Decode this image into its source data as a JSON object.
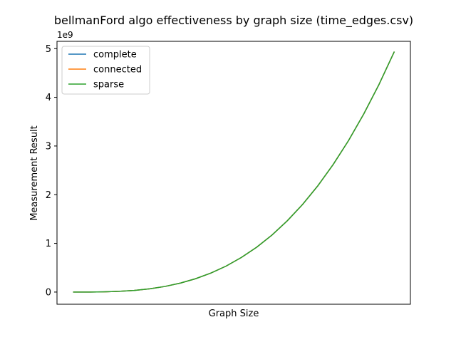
{
  "chart_data": {
    "type": "line",
    "title": "bellmanFord algo effectiveness by graph size (time_edges.csv)",
    "xlabel": "Graph Size",
    "ylabel": "Measurement Result",
    "y_offset_label": "1e9",
    "y_scale_factor": 1000000000,
    "yticks": [
      0,
      1,
      2,
      3,
      4,
      5
    ],
    "ylim": [
      -0.25,
      5.15
    ],
    "xlim": [
      -1.05,
      22.05
    ],
    "x_ticks_shown": false,
    "legend_position": "upper-left",
    "grid": false,
    "x": [
      0,
      1,
      2,
      3,
      4,
      5,
      6,
      7,
      8,
      9,
      10,
      11,
      12,
      13,
      14,
      15,
      16,
      17,
      18,
      19,
      20,
      21
    ],
    "series": [
      {
        "name": "complete",
        "color": "#1f77b4",
        "values": [
          0,
          0.00053,
          0.0043,
          0.0144,
          0.0341,
          0.0666,
          0.115,
          0.183,
          0.273,
          0.389,
          0.533,
          0.71,
          0.921,
          1.171,
          1.463,
          1.799,
          2.183,
          2.619,
          3.109,
          3.657,
          4.265,
          4.938
        ]
      },
      {
        "name": "connected",
        "color": "#ff7f0e",
        "values": [
          0,
          0.00053,
          0.0043,
          0.0144,
          0.0341,
          0.0666,
          0.115,
          0.183,
          0.273,
          0.389,
          0.533,
          0.71,
          0.921,
          1.171,
          1.463,
          1.799,
          2.183,
          2.619,
          3.109,
          3.657,
          4.265,
          4.938
        ]
      },
      {
        "name": "sparse",
        "color": "#2ca02c",
        "values": [
          0,
          0.00053,
          0.0043,
          0.0144,
          0.0341,
          0.0666,
          0.115,
          0.183,
          0.273,
          0.389,
          0.533,
          0.71,
          0.921,
          1.171,
          1.463,
          1.799,
          2.183,
          2.619,
          3.109,
          3.657,
          4.265,
          4.938
        ]
      }
    ]
  }
}
